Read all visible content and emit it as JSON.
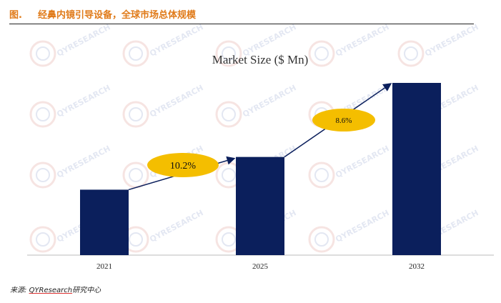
{
  "header": {
    "figure_label": "图.",
    "title": "经鼻内镜引导设备，全球市场总体规模"
  },
  "source": {
    "prefix": "来源:",
    "brand": "QYResearch",
    "suffix": "研究中心"
  },
  "watermark": {
    "text": "QYRESEARCH"
  },
  "colors": {
    "bar": "#0b1f5c",
    "ellipse": "#f4be00",
    "title": "#e07b1a",
    "arrow": "#0b1f5c"
  },
  "chart_data": {
    "type": "bar",
    "title": "Market Size ($ Mn)",
    "categories": [
      "2021",
      "2025",
      "2032"
    ],
    "values": [
      38,
      57,
      100
    ],
    "ylim": [
      0,
      100
    ],
    "grid": false,
    "annotations": [
      {
        "text": "10.2%",
        "from": "2021",
        "to": "2025",
        "meaning": "CAGR"
      },
      {
        "text": "8.6%",
        "from": "2025",
        "to": "2032",
        "meaning": "CAGR"
      }
    ]
  }
}
